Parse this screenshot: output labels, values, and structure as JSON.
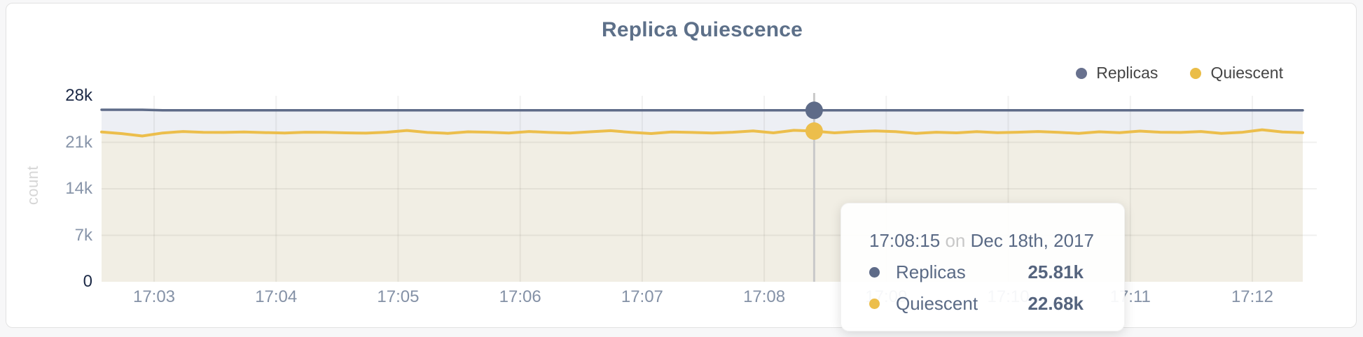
{
  "header": {
    "title": "Replica Quiescence"
  },
  "legend": {
    "items": [
      {
        "label": "Replicas",
        "color": "#68718e"
      },
      {
        "label": "Quiescent",
        "color": "#eabd47"
      }
    ]
  },
  "axes": {
    "y_label": "count",
    "y_ticks": [
      "28k",
      "21k",
      "14k",
      "7k",
      "0"
    ],
    "x_ticks": [
      "17:03",
      "17:04",
      "17:05",
      "17:06",
      "17:07",
      "17:08",
      "17:09",
      "17:10",
      "17:11",
      "17:12"
    ]
  },
  "tooltip": {
    "time": "17:08:15",
    "connector": "on",
    "date": "Dec 18th, 2017",
    "rows": [
      {
        "name": "Replicas",
        "value": "25.81k"
      },
      {
        "name": "Quiescent",
        "value": "22.68k"
      }
    ]
  },
  "chart_data": {
    "type": "area",
    "title": "Replica Quiescence",
    "xlabel": "",
    "ylabel": "count",
    "ylim_k": [
      0,
      28
    ],
    "y_tick_values_k": [
      28,
      21,
      14,
      7,
      0
    ],
    "x_tick_labels": [
      "17:03",
      "17:04",
      "17:05",
      "17:06",
      "17:07",
      "17:08",
      "17:09",
      "17:10",
      "17:11",
      "17:12"
    ],
    "grid": true,
    "legend_position": "top-right",
    "series": [
      {
        "name": "Replicas",
        "line_color": "#5e6b88",
        "fill_color": "#edeff4",
        "values_k": [
          25.9,
          25.9,
          25.9,
          25.81,
          25.81,
          25.81,
          25.81,
          25.81,
          25.81,
          25.81,
          25.81,
          25.81,
          25.81,
          25.81,
          25.81,
          25.81,
          25.81,
          25.81,
          25.81,
          25.81,
          25.81,
          25.81,
          25.81,
          25.81,
          25.81,
          25.81,
          25.81,
          25.81,
          25.81,
          25.81,
          25.81,
          25.81,
          25.81,
          25.81,
          25.81,
          25.81,
          25.81,
          25.81,
          25.81,
          25.81,
          25.81,
          25.81,
          25.81,
          25.81,
          25.81,
          25.81,
          25.81,
          25.81,
          25.81,
          25.81,
          25.81,
          25.81,
          25.81,
          25.81,
          25.81,
          25.81,
          25.81,
          25.81,
          25.81,
          25.81
        ]
      },
      {
        "name": "Quiescent",
        "line_color": "#ecbe4b",
        "fill_color": "#f1eee4",
        "values_k": [
          22.55,
          22.3,
          21.95,
          22.4,
          22.62,
          22.5,
          22.48,
          22.55,
          22.46,
          22.4,
          22.52,
          22.5,
          22.42,
          22.38,
          22.52,
          22.78,
          22.48,
          22.35,
          22.58,
          22.52,
          22.4,
          22.62,
          22.48,
          22.4,
          22.58,
          22.75,
          22.5,
          22.32,
          22.55,
          22.48,
          22.4,
          22.52,
          22.7,
          22.42,
          22.8,
          22.68,
          22.42,
          22.6,
          22.72,
          22.6,
          22.35,
          22.52,
          22.42,
          22.6,
          22.45,
          22.52,
          22.62,
          22.5,
          22.35,
          22.58,
          22.45,
          22.68,
          22.52,
          22.48,
          22.62,
          22.35,
          22.5,
          22.88,
          22.55,
          22.45
        ]
      }
    ],
    "hover": {
      "index": 35,
      "time": "17:08:15",
      "date": "Dec 18th, 2017",
      "values": {
        "Replicas": "25.81k",
        "Quiescent": "22.68k"
      },
      "crosshair_color": "#c9c9c9"
    }
  }
}
